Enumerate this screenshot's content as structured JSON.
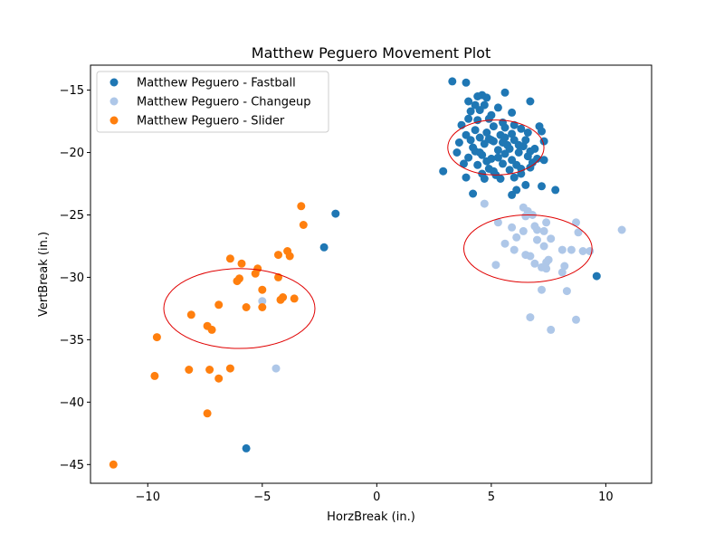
{
  "chart_data": {
    "type": "scatter",
    "title": "Matthew Peguero Movement Plot",
    "xlabel": "HorzBreak (in.)",
    "ylabel": "VertBreak (in.)",
    "xlim": [
      -12.5,
      12
    ],
    "ylim": [
      -46.5,
      -13
    ],
    "xticks": [
      -10,
      -5,
      0,
      5,
      10
    ],
    "yticks": [
      -15,
      -20,
      -25,
      -30,
      -35,
      -40,
      -45
    ],
    "grid": false,
    "legend_position": "top-left",
    "series": [
      {
        "name": "Matthew Peguero - Fastball",
        "color": "#1f77b4",
        "points": [
          [
            3.3,
            -14.3
          ],
          [
            3.9,
            -14.4
          ],
          [
            4.6,
            -15.4
          ],
          [
            4.4,
            -15.5
          ],
          [
            4.8,
            -15.6
          ],
          [
            5.6,
            -15.2
          ],
          [
            6.7,
            -15.9
          ],
          [
            4.0,
            -15.9
          ],
          [
            4.3,
            -16.2
          ],
          [
            4.7,
            -16.2
          ],
          [
            5.3,
            -16.4
          ],
          [
            4.1,
            -16.7
          ],
          [
            4.5,
            -16.6
          ],
          [
            5.0,
            -17.0
          ],
          [
            5.9,
            -16.8
          ],
          [
            4.0,
            -17.3
          ],
          [
            4.4,
            -17.4
          ],
          [
            4.9,
            -17.3
          ],
          [
            5.5,
            -17.6
          ],
          [
            3.7,
            -17.8
          ],
          [
            6.0,
            -17.8
          ],
          [
            5.1,
            -17.9
          ],
          [
            5.6,
            -18.0
          ],
          [
            4.3,
            -18.2
          ],
          [
            6.3,
            -18.1
          ],
          [
            7.1,
            -17.9
          ],
          [
            4.8,
            -18.4
          ],
          [
            5.9,
            -18.5
          ],
          [
            3.9,
            -18.6
          ],
          [
            4.5,
            -18.8
          ],
          [
            5.4,
            -18.6
          ],
          [
            6.6,
            -18.4
          ],
          [
            7.2,
            -18.3
          ],
          [
            4.1,
            -19.0
          ],
          [
            5.1,
            -19.1
          ],
          [
            6.0,
            -19.0
          ],
          [
            3.6,
            -19.2
          ],
          [
            4.7,
            -19.3
          ],
          [
            5.7,
            -19.4
          ],
          [
            7.3,
            -19.1
          ],
          [
            6.4,
            -19.5
          ],
          [
            4.2,
            -19.6
          ],
          [
            5.3,
            -19.8
          ],
          [
            6.9,
            -19.7
          ],
          [
            3.5,
            -20.0
          ],
          [
            4.6,
            -20.2
          ],
          [
            5.6,
            -20.1
          ],
          [
            6.2,
            -20.0
          ],
          [
            4.0,
            -20.4
          ],
          [
            5.0,
            -20.5
          ],
          [
            6.6,
            -20.3
          ],
          [
            7.3,
            -20.6
          ],
          [
            3.8,
            -20.9
          ],
          [
            4.4,
            -21.0
          ],
          [
            5.5,
            -20.9
          ],
          [
            6.1,
            -21.0
          ],
          [
            7.0,
            -20.5
          ],
          [
            4.9,
            -21.3
          ],
          [
            5.8,
            -21.4
          ],
          [
            6.7,
            -21.2
          ],
          [
            4.6,
            -21.7
          ],
          [
            5.2,
            -21.8
          ],
          [
            6.3,
            -21.7
          ],
          [
            2.9,
            -21.5
          ],
          [
            4.7,
            -22.1
          ],
          [
            5.4,
            -22.1
          ],
          [
            6.0,
            -22.0
          ],
          [
            3.9,
            -22.0
          ],
          [
            6.5,
            -22.6
          ],
          [
            7.2,
            -22.7
          ],
          [
            6.1,
            -23.0
          ],
          [
            5.9,
            -23.4
          ],
          [
            4.2,
            -23.3
          ],
          [
            7.8,
            -23.0
          ],
          [
            5.0,
            -19.0
          ],
          [
            5.8,
            -19.7
          ],
          [
            6.5,
            -19.0
          ],
          [
            4.8,
            -20.7
          ],
          [
            5.3,
            -20.4
          ],
          [
            6.8,
            -20.8
          ],
          [
            4.3,
            -19.9
          ],
          [
            5.9,
            -20.6
          ],
          [
            6.3,
            -21.3
          ],
          [
            5.1,
            -21.5
          ],
          [
            4.5,
            -20.0
          ],
          [
            5.5,
            -19.2
          ],
          [
            6.7,
            -19.9
          ],
          [
            4.9,
            -18.9
          ],
          [
            5.6,
            -18.8
          ],
          [
            6.2,
            -19.4
          ],
          [
            -1.8,
            -24.9
          ],
          [
            -2.3,
            -27.6
          ],
          [
            9.6,
            -29.9
          ],
          [
            -5.7,
            -43.7
          ]
        ]
      },
      {
        "name": "Matthew Peguero - Changeup",
        "color": "#aec7e8",
        "points": [
          [
            4.7,
            -24.1
          ],
          [
            6.4,
            -24.4
          ],
          [
            6.6,
            -24.7
          ],
          [
            6.8,
            -25.0
          ],
          [
            6.5,
            -25.1
          ],
          [
            5.3,
            -25.6
          ],
          [
            7.4,
            -25.6
          ],
          [
            8.7,
            -25.6
          ],
          [
            6.9,
            -25.9
          ],
          [
            5.9,
            -26.0
          ],
          [
            6.4,
            -26.3
          ],
          [
            7.0,
            -26.2
          ],
          [
            7.3,
            -26.3
          ],
          [
            8.8,
            -26.4
          ],
          [
            10.7,
            -26.2
          ],
          [
            6.1,
            -26.8
          ],
          [
            7.6,
            -26.9
          ],
          [
            7.0,
            -27.0
          ],
          [
            5.6,
            -27.3
          ],
          [
            7.3,
            -27.5
          ],
          [
            6.0,
            -27.8
          ],
          [
            8.1,
            -27.8
          ],
          [
            8.5,
            -27.8
          ],
          [
            9.0,
            -27.9
          ],
          [
            9.3,
            -27.9
          ],
          [
            6.5,
            -28.2
          ],
          [
            6.7,
            -28.3
          ],
          [
            7.5,
            -28.6
          ],
          [
            7.4,
            -28.8
          ],
          [
            6.9,
            -28.9
          ],
          [
            5.2,
            -29.0
          ],
          [
            8.2,
            -29.1
          ],
          [
            7.2,
            -29.2
          ],
          [
            7.4,
            -29.3
          ],
          [
            8.1,
            -29.6
          ],
          [
            7.2,
            -31.0
          ],
          [
            8.3,
            -31.1
          ],
          [
            -5.0,
            -31.9
          ],
          [
            6.7,
            -33.2
          ],
          [
            8.7,
            -33.4
          ],
          [
            7.6,
            -34.2
          ],
          [
            -4.4,
            -37.3
          ]
        ]
      },
      {
        "name": "Matthew Peguero - Slider",
        "color": "#ff7f0e",
        "points": [
          [
            -3.3,
            -24.3
          ],
          [
            -3.2,
            -25.8
          ],
          [
            -3.9,
            -27.9
          ],
          [
            -3.8,
            -28.3
          ],
          [
            -4.3,
            -28.2
          ],
          [
            -6.4,
            -28.5
          ],
          [
            -5.9,
            -28.9
          ],
          [
            -5.2,
            -29.3
          ],
          [
            -5.3,
            -29.7
          ],
          [
            -4.3,
            -30.0
          ],
          [
            -6.0,
            -30.1
          ],
          [
            -6.1,
            -30.3
          ],
          [
            -5.0,
            -31.0
          ],
          [
            -4.1,
            -31.6
          ],
          [
            -4.2,
            -31.8
          ],
          [
            -3.6,
            -31.7
          ],
          [
            -6.9,
            -32.2
          ],
          [
            -5.7,
            -32.4
          ],
          [
            -5.0,
            -32.4
          ],
          [
            -8.1,
            -33.0
          ],
          [
            -7.4,
            -33.9
          ],
          [
            -7.2,
            -34.2
          ],
          [
            -9.6,
            -34.8
          ],
          [
            -8.2,
            -37.4
          ],
          [
            -7.3,
            -37.4
          ],
          [
            -6.4,
            -37.3
          ],
          [
            -9.7,
            -37.9
          ],
          [
            -6.9,
            -38.1
          ],
          [
            -7.4,
            -40.9
          ],
          [
            -11.5,
            -45.0
          ]
        ]
      }
    ],
    "ellipses": [
      {
        "cx": 5.2,
        "cy": -19.6,
        "rx": 2.1,
        "ry": 2.2,
        "color": "#e00000"
      },
      {
        "cx": 6.6,
        "cy": -27.7,
        "rx": 2.8,
        "ry": 2.7,
        "color": "#e00000"
      },
      {
        "cx": -6.0,
        "cy": -32.5,
        "rx": 3.3,
        "ry": 3.2,
        "color": "#e00000"
      }
    ]
  }
}
